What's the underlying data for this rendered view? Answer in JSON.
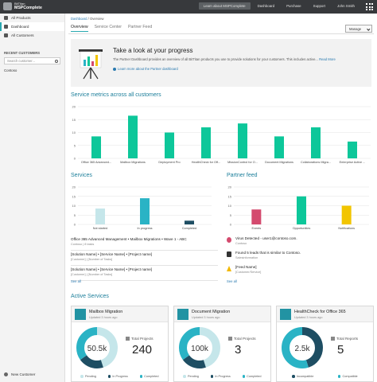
{
  "topbar": {
    "brand_small": "BitTitan",
    "brand_name": "MSPComplete",
    "nav": [
      {
        "label": "Learn about MSPComplete",
        "highlight": true
      },
      {
        "label": "Dashboard",
        "highlight": false
      },
      {
        "label": "Purchase",
        "highlight": false
      },
      {
        "label": "Support",
        "highlight": false
      },
      {
        "label": "John Smith",
        "highlight": false
      }
    ]
  },
  "sidebar": {
    "items": [
      {
        "label": "All Products",
        "icon": "products-icon",
        "active": false
      },
      {
        "label": "Dashboard",
        "icon": "dashboard-icon",
        "active": true
      },
      {
        "label": "All Customers",
        "icon": "customers-icon",
        "active": false
      }
    ],
    "recent_title": "Recent Customers",
    "search_placeholder": "Search customer...",
    "recent": [
      "Contoso"
    ],
    "new_customer": "New Customer"
  },
  "breadcrumb": {
    "link": "Dashboard",
    "sep": " / ",
    "current": "Overview"
  },
  "tabs": [
    {
      "label": "Overview",
      "active": true
    },
    {
      "label": "Service Center",
      "active": false
    },
    {
      "label": "Partner Feed",
      "active": false
    }
  ],
  "manage_label": "Manage",
  "banner": {
    "title": "Take a look at your progress",
    "text": "The Partner Dashboard provides an overview of all BitTitan products you use to provide solutions for your customers. This includes active...",
    "read_more": "Read More",
    "link": "Learn more about the Partner dashboard"
  },
  "metrics": {
    "title": "Service metrics across all customers"
  },
  "services": {
    "title": "Services",
    "items": [
      {
        "title": "Office 365 Advanced Management • Mailbox Migrations • Wave 1 - ABC",
        "sub": "Contoso | 8 tasks"
      },
      {
        "title": "[Solution Name] • [Service Name] • [Project name]",
        "sub": "[Customer] | [Number of Tasks]"
      },
      {
        "title": "[Solution Name] • [Service Name] • [Project name]",
        "sub": "[Customer] | [Number of Tasks]"
      }
    ],
    "see_all": "See all"
  },
  "feed": {
    "title": "Partner feed",
    "items": [
      {
        "title": "Virus Detected - user1@contoso.com.",
        "sub": "Contoso",
        "icon": "virus-icon",
        "color": "#d44a6e"
      },
      {
        "title": "Found 5 leads that is similar to Contoso.",
        "sub": "Salesinformation",
        "icon": "lead-icon",
        "color": "#333333"
      },
      {
        "title": "[Feed Name]",
        "sub": "[Customer/Service]",
        "icon": "warning-icon",
        "color": "#f2b800"
      }
    ],
    "see_all": "See all"
  },
  "active": {
    "title": "Active Services",
    "cards": [
      {
        "name": "Mailbox Migration",
        "updated": "Updated 3 hours ago",
        "center": "50.5k",
        "label": "Total Projects",
        "value": "240",
        "segments": [
          0.45,
          0.2,
          0.35
        ],
        "colors": [
          "#c5e6ea",
          "#1e4e63",
          "#2ab3c5"
        ],
        "legend": [
          {
            "label": "Pending",
            "color": "#c5e6ea"
          },
          {
            "label": "In Progress",
            "color": "#1e4e63"
          },
          {
            "label": "Completed",
            "color": "#2ab3c5"
          }
        ]
      },
      {
        "name": "Document Migration",
        "updated": "Updated 3 hours ago",
        "center": "100k",
        "label": "Total Projects",
        "value": "3",
        "segments": [
          0.45,
          0.2,
          0.35
        ],
        "colors": [
          "#c5e6ea",
          "#1e4e63",
          "#2ab3c5"
        ],
        "legend": [
          {
            "label": "Pending",
            "color": "#c5e6ea"
          },
          {
            "label": "In Progress",
            "color": "#1e4e63"
          },
          {
            "label": "Completed",
            "color": "#2ab3c5"
          }
        ]
      },
      {
        "name": "HealthCheck for Office 365",
        "updated": "Updated 3 hours ago",
        "center": "2.5k",
        "label": "Total Reports",
        "value": "5",
        "segments": [
          0.45,
          0.55
        ],
        "colors": [
          "#1e4e63",
          "#2ab3c5"
        ],
        "legend": [
          {
            "label": "Incompatible",
            "color": "#1e4e63"
          },
          {
            "label": "Compatible",
            "color": "#2ab3c5"
          }
        ]
      }
    ]
  },
  "chart_data": [
    {
      "type": "bar",
      "categories": [
        "Office 365 Advanced...",
        "Mailbox Migrations",
        "Deployment Pro",
        "HealthCheck for Off...",
        "MissionControl for O...",
        "Document Migrations",
        "Collaborations Migra...",
        "Enterprise Active ..."
      ],
      "values": [
        8.5,
        16.5,
        10,
        12,
        13.5,
        8.5,
        12,
        6.5
      ],
      "ylim": [
        0,
        20
      ],
      "yticks": [
        0,
        5,
        10,
        15,
        20
      ],
      "color": "#0dc79a",
      "grid": true
    },
    {
      "type": "bar",
      "categories": [
        "Not started",
        "In progress",
        "Completed"
      ],
      "values": [
        8.5,
        14,
        2
      ],
      "colors": [
        "#c5e6ea",
        "#2ab3c5",
        "#1e4e63"
      ],
      "ylim": [
        0,
        20
      ],
      "yticks": [
        0,
        5,
        10,
        15,
        20
      ],
      "grid": true
    },
    {
      "type": "bar",
      "categories": [
        "Events",
        "Opportunities",
        "Notifications"
      ],
      "values": [
        8,
        15,
        10
      ],
      "colors": [
        "#d44a6e",
        "#0dc79a",
        "#f2c500"
      ],
      "ylim": [
        0,
        20
      ],
      "yticks": [
        0,
        5,
        10,
        15,
        20
      ],
      "grid": true
    }
  ]
}
